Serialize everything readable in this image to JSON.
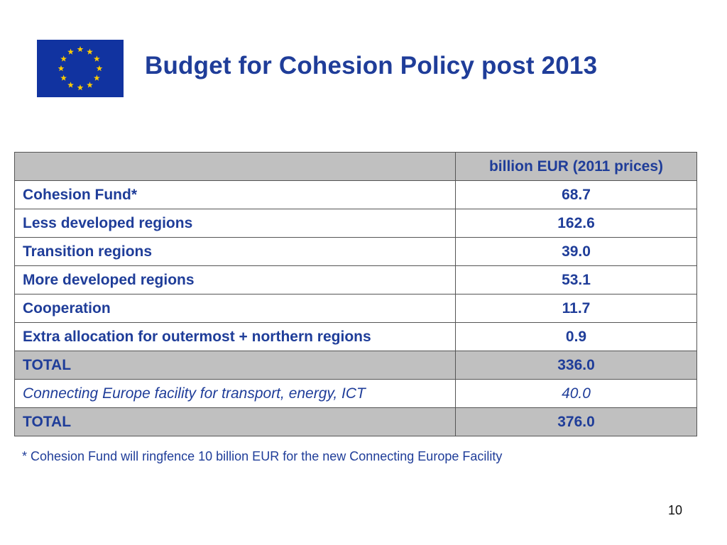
{
  "slide": {
    "title": "Budget for Cohesion Policy post 2013",
    "flag_icon": "eu-flag-icon",
    "colors": {
      "title_text": "#1f3d99",
      "flag_blue": "#1133a0",
      "flag_stars": "#ffcc00",
      "shaded_row": "#c0c0c0"
    }
  },
  "table": {
    "header": {
      "label": "",
      "value": "billion EUR (2011 prices)"
    },
    "rows": [
      {
        "label": "Cohesion Fund*",
        "value": "68.7",
        "style": "normal"
      },
      {
        "label": "Less developed regions",
        "value": "162.6",
        "style": "normal"
      },
      {
        "label": "Transition regions",
        "value": "39.0",
        "style": "normal"
      },
      {
        "label": "More developed regions",
        "value": "53.1",
        "style": "normal"
      },
      {
        "label": "Cooperation",
        "value": "11.7",
        "style": "normal"
      },
      {
        "label": "Extra allocation for outermost + northern regions",
        "value": "0.9",
        "style": "normal"
      },
      {
        "label": "TOTAL",
        "value": "336.0",
        "style": "total"
      },
      {
        "label": "Connecting Europe facility for transport, energy, ICT",
        "value": "40.0",
        "style": "italic"
      },
      {
        "label": "TOTAL",
        "value": "376.0",
        "style": "total"
      }
    ]
  },
  "footnote": "* Cohesion Fund will ringfence 10 billion EUR for the new Connecting Europe Facility",
  "page_number": "10"
}
